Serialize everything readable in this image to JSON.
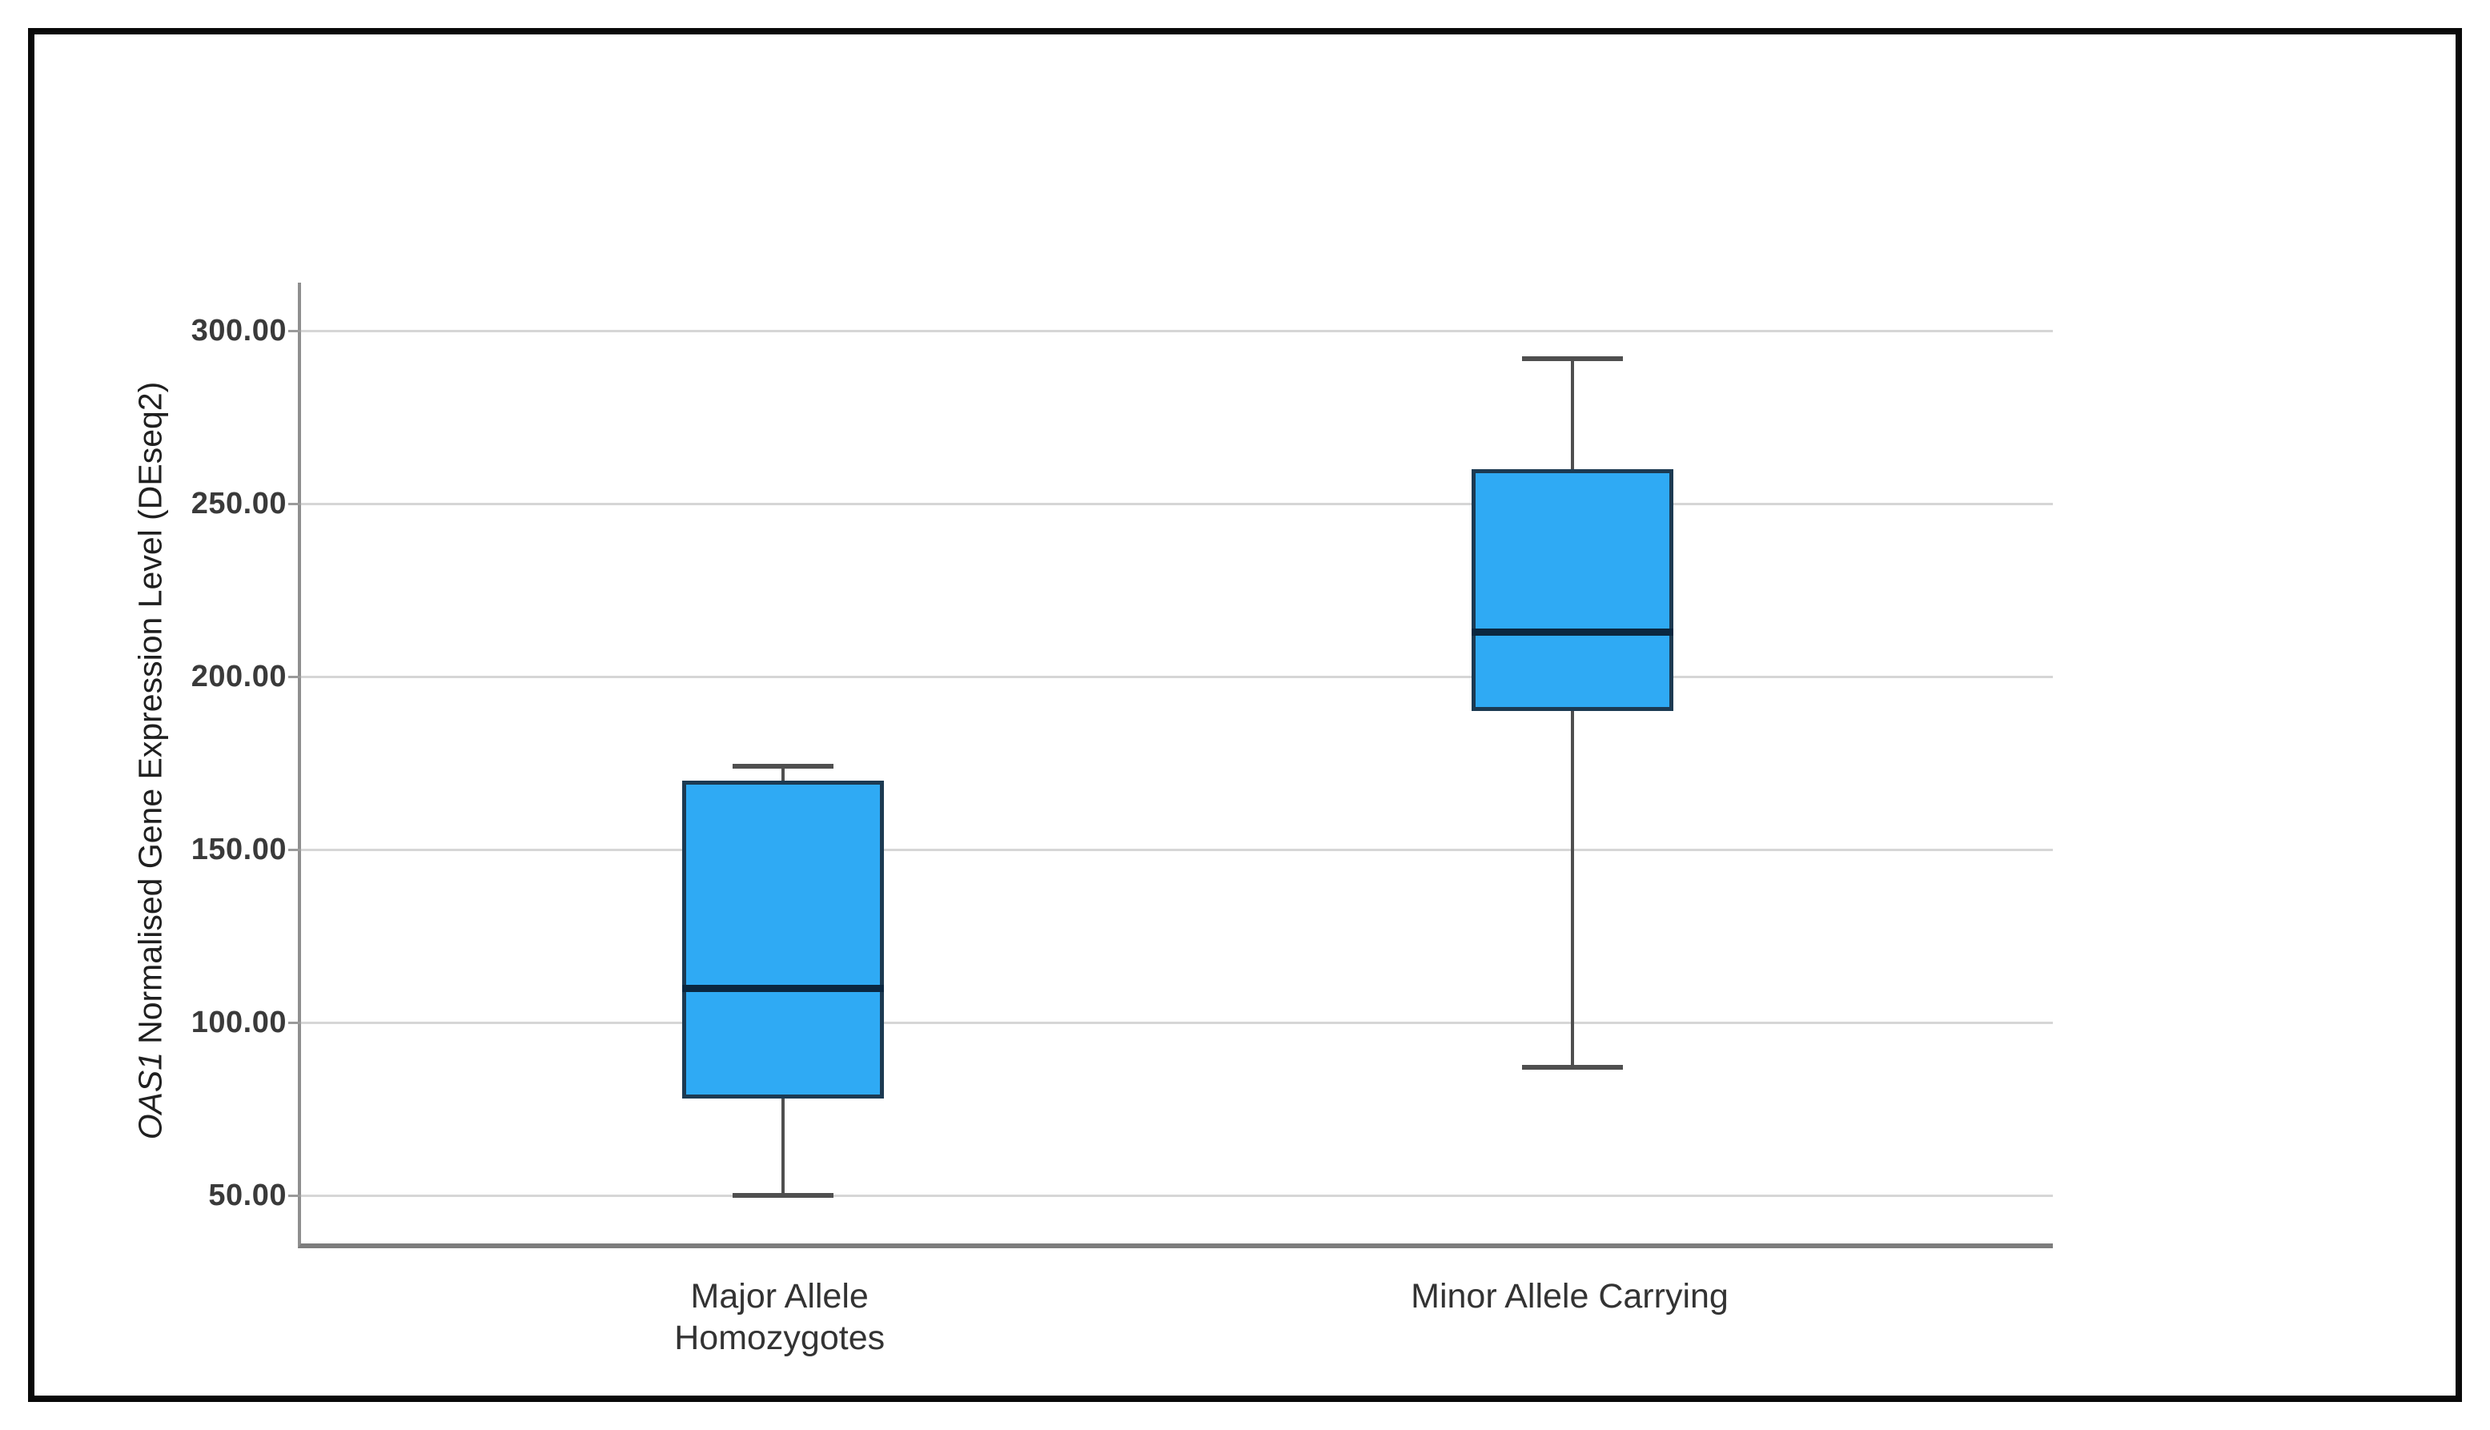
{
  "window": {
    "background": "#ffffff",
    "frame_border_color": "#0a0a0a"
  },
  "chart_data": {
    "type": "boxplot",
    "title": "",
    "xlabel": "",
    "ylabel": {
      "italic": "OAS1",
      "rest": "Normalised Gene Expression Level (DEseq2)"
    },
    "y_axis": {
      "min": 36,
      "max": 314,
      "grid": true,
      "ticks": [
        {
          "value": 300,
          "label": "300.00"
        },
        {
          "value": 250,
          "label": "250.00"
        },
        {
          "value": 200,
          "label": "200.00"
        },
        {
          "value": 150,
          "label": "150.00"
        },
        {
          "value": 100,
          "label": "100.00"
        },
        {
          "value": 50,
          "label": "50.00"
        }
      ]
    },
    "series": [
      {
        "category_lines": [
          "Major Allele",
          "Homozygotes"
        ],
        "whisker_low": 50,
        "q1": 78,
        "median": 110,
        "q3": 170,
        "whisker_high": 174
      },
      {
        "category_lines": [
          "Minor Allele Carrying"
        ],
        "whisker_low": 87,
        "q1": 190,
        "median": 213,
        "q3": 260,
        "whisker_high": 292
      }
    ],
    "legend": null,
    "colors": {
      "box_fill": "#2FAAF4",
      "box_border": "#1C3A52",
      "median": "#0B2740",
      "whisker": "#4F4F4F",
      "gridline": "#D6D6D6",
      "axis": "#8A8A8A",
      "tick_text": "#3A3A3A",
      "category_text": "#333333",
      "ylabel_text": "#1F1F1F"
    }
  }
}
